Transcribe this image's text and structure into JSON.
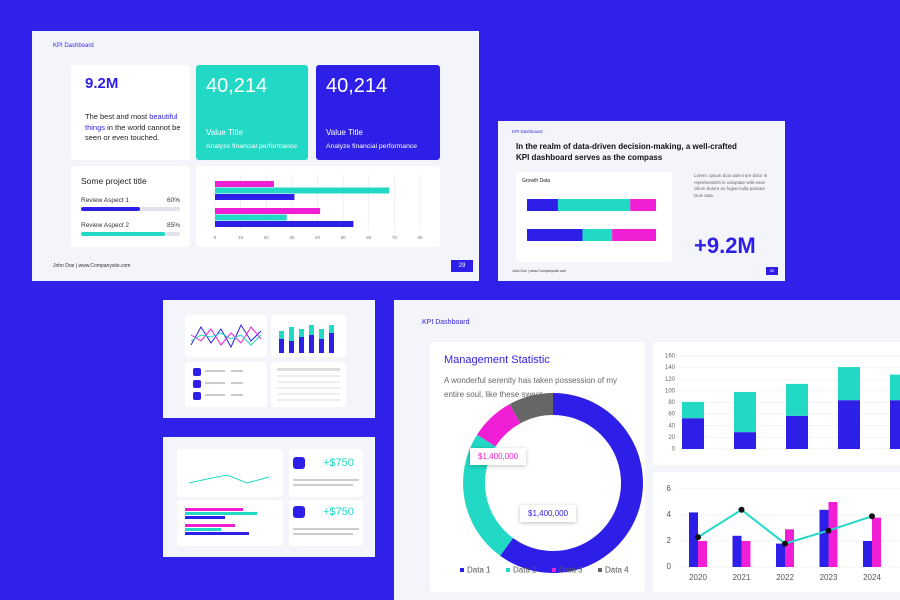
{
  "slide1": {
    "label": "KPI Dashboard",
    "kpi": "9.2M",
    "kpi_text_1": "The best and most",
    "kpi_text_highlight": "beautiful things",
    "kpi_text_2": "in the world cannot be seen or even touched.",
    "cards": [
      {
        "value": "40,214",
        "title": "Value Title",
        "subtitle": "Analyze financial performance"
      },
      {
        "value": "40,214",
        "title": "Value Title",
        "subtitle": "Analyze financial performance"
      }
    ],
    "project_title": "Some project title",
    "aspects": [
      {
        "name": "Review Aspect 1",
        "value": 60,
        "label": "60%"
      },
      {
        "name": "Review Aspect 2",
        "value": 85,
        "label": "85%"
      }
    ],
    "footer": "John Doe | www.Companysite.com",
    "page": "29"
  },
  "slide2": {
    "label": "KPI Dashboard",
    "heading": "In the realm of data-driven decision-making, a well-crafted KPI dashboard serves as the compass",
    "body": "Lorem. Ipsum duis aute irure dolor in reprehenderit in voluptate velit esse cillum dolore eu fugiat nulla pariatur. Duis aute.",
    "kpi": "+9.2M",
    "footer": "John Doe | www.Companysite.com",
    "page": "30"
  },
  "slide4": {
    "kpis": [
      "+$750",
      "+$750"
    ]
  },
  "slide5": {
    "label": "KPI Dashboard"
  },
  "chart_data": [
    {
      "type": "bar",
      "orientation": "horizontal",
      "series": [
        {
          "color": "#f01fd6",
          "values": [
            23,
            41
          ]
        },
        {
          "color": "#22d9c5",
          "values": [
            68,
            28
          ]
        },
        {
          "color": "#2e1fe8",
          "values": [
            31,
            54
          ]
        }
      ],
      "xlim": [
        0,
        80
      ],
      "xticks": [
        0,
        10,
        20,
        30,
        40,
        50,
        60,
        70,
        80
      ],
      "grid": true
    },
    {
      "type": "stacked-bar",
      "orientation": "horizontal",
      "title": "Growth Data",
      "series": [
        {
          "color": "#2e1fe8",
          "values": [
            24,
            43
          ]
        },
        {
          "color": "#22d9c5",
          "values": [
            56,
            23
          ]
        },
        {
          "color": "#f01fd6",
          "values": [
            20,
            34
          ]
        }
      ],
      "xlim": [
        0,
        100
      ]
    },
    {
      "type": "pie",
      "title": "Management Statistic",
      "subtitle": "A wonderful serenity has taken possession of my entire soul, like these sweet",
      "categories": [
        "Data 1",
        "Data 2",
        "Data 3",
        "Data 4"
      ],
      "values": [
        60,
        24,
        8,
        8
      ],
      "colors": [
        "#2e1fe8",
        "#22d9c5",
        "#f01fd6",
        "#666666"
      ],
      "annotations": [
        "$1,400,000",
        "$1,400,000"
      ]
    },
    {
      "type": "stacked-bar",
      "series": [
        {
          "color": "#2e1fe8",
          "values": [
            53,
            29,
            57,
            84,
            84
          ]
        },
        {
          "color": "#22d9c5",
          "values": [
            28,
            69,
            55,
            57,
            44
          ]
        }
      ],
      "ylim": [
        0,
        160
      ],
      "yticks": [
        0,
        20,
        40,
        60,
        80,
        100,
        120,
        140,
        160
      ],
      "grid": true
    },
    {
      "type": "bar-line",
      "categories": [
        "2020",
        "2021",
        "2022",
        "2023",
        "2024"
      ],
      "series": [
        {
          "type": "bar",
          "color": "#2e1fe8",
          "values": [
            4.2,
            2.4,
            1.8,
            4.4,
            2
          ]
        },
        {
          "type": "bar",
          "color": "#f01fd6",
          "values": [
            2,
            2,
            2.9,
            5,
            3.8
          ]
        },
        {
          "type": "line",
          "color": "#22d9c5",
          "values": [
            2.3,
            4.4,
            1.8,
            2.8,
            3.9
          ]
        }
      ],
      "ylim": [
        0,
        6
      ],
      "yticks": [
        0,
        2,
        4,
        6
      ],
      "grid": true
    }
  ]
}
